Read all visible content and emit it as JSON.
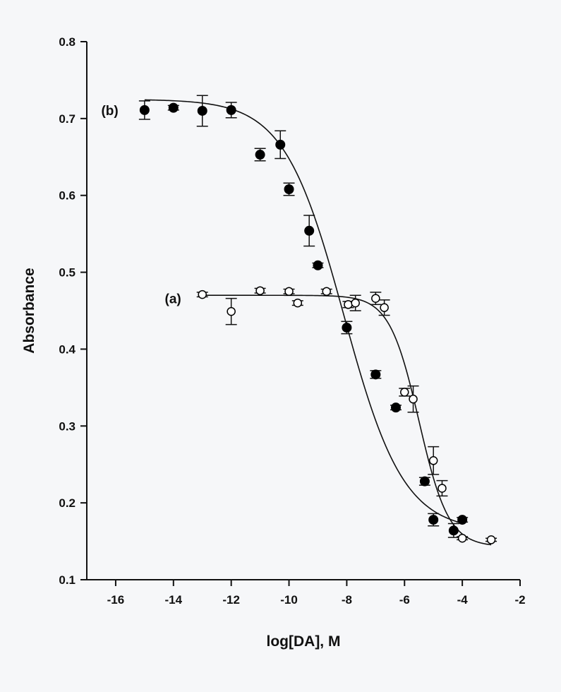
{
  "chart_data": {
    "type": "scatter",
    "title": "",
    "xlabel": "log[DA], M",
    "ylabel": "Absorbance",
    "xlim": [
      -17,
      -2
    ],
    "ylim": [
      0.1,
      0.8
    ],
    "xticks": [
      -16,
      -14,
      -12,
      -10,
      -8,
      -6,
      -4,
      -2
    ],
    "yticks": [
      0.1,
      0.2,
      0.3,
      0.4,
      0.5,
      0.6,
      0.7,
      0.8
    ],
    "xtick_labels": [
      "-16",
      "-14",
      "-12",
      "-10",
      "-8",
      "-6",
      "-4",
      "-2"
    ],
    "ytick_labels": [
      "0.1",
      "0.2",
      "0.3",
      "0.4",
      "0.5",
      "0.6",
      "0.7",
      "0.8"
    ],
    "grid": false,
    "legend": "none",
    "annotations": [
      {
        "text": "(b)",
        "series": "b"
      },
      {
        "text": "(a)",
        "series": "a"
      }
    ],
    "series": [
      {
        "id": "a",
        "marker": "open-circle",
        "color": "#000000",
        "points": [
          {
            "x": -13.0,
            "y": 0.471,
            "err": 0.003
          },
          {
            "x": -12.0,
            "y": 0.449,
            "err": 0.017
          },
          {
            "x": -11.0,
            "y": 0.476,
            "err": 0.003
          },
          {
            "x": -10.0,
            "y": 0.475,
            "err": 0.003
          },
          {
            "x": -9.7,
            "y": 0.46,
            "err": 0.003
          },
          {
            "x": -8.7,
            "y": 0.475,
            "err": 0.003
          },
          {
            "x": -7.95,
            "y": 0.458,
            "err": 0.004
          },
          {
            "x": -7.7,
            "y": 0.46,
            "err": 0.01
          },
          {
            "x": -7.0,
            "y": 0.466,
            "err": 0.008
          },
          {
            "x": -6.7,
            "y": 0.454,
            "err": 0.01
          },
          {
            "x": -6.0,
            "y": 0.344,
            "err": 0.005
          },
          {
            "x": -5.7,
            "y": 0.335,
            "err": 0.017
          },
          {
            "x": -5.0,
            "y": 0.255,
            "err": 0.018
          },
          {
            "x": -4.7,
            "y": 0.219,
            "err": 0.01
          },
          {
            "x": -4.0,
            "y": 0.154,
            "err": 0.002
          },
          {
            "x": -3.0,
            "y": 0.152,
            "err": 0.002
          }
        ],
        "fit": {
          "top": 0.47,
          "bottom": 0.143,
          "logEC50": -5.5,
          "hill": 0.85
        }
      },
      {
        "id": "b",
        "marker": "filled-circle",
        "color": "#000000",
        "points": [
          {
            "x": -15.0,
            "y": 0.711,
            "err": 0.012
          },
          {
            "x": -14.0,
            "y": 0.714,
            "err": 0.003
          },
          {
            "x": -13.0,
            "y": 0.71,
            "err": 0.02
          },
          {
            "x": -12.0,
            "y": 0.711,
            "err": 0.01
          },
          {
            "x": -11.0,
            "y": 0.653,
            "err": 0.008
          },
          {
            "x": -10.3,
            "y": 0.666,
            "err": 0.018
          },
          {
            "x": -10.0,
            "y": 0.608,
            "err": 0.008
          },
          {
            "x": -9.3,
            "y": 0.554,
            "err": 0.02
          },
          {
            "x": -9.0,
            "y": 0.509,
            "err": 0.003
          },
          {
            "x": -8.0,
            "y": 0.428,
            "err": 0.008
          },
          {
            "x": -7.0,
            "y": 0.367,
            "err": 0.005
          },
          {
            "x": -6.3,
            "y": 0.324,
            "err": 0.003
          },
          {
            "x": -5.3,
            "y": 0.228,
            "err": 0.005
          },
          {
            "x": -5.0,
            "y": 0.178,
            "err": 0.008
          },
          {
            "x": -4.3,
            "y": 0.164,
            "err": 0.009
          },
          {
            "x": -4.0,
            "y": 0.178,
            "err": 0.003
          }
        ],
        "fit": {
          "top": 0.725,
          "bottom": 0.163,
          "logEC50": -8.1,
          "hill": 0.42
        }
      }
    ]
  }
}
